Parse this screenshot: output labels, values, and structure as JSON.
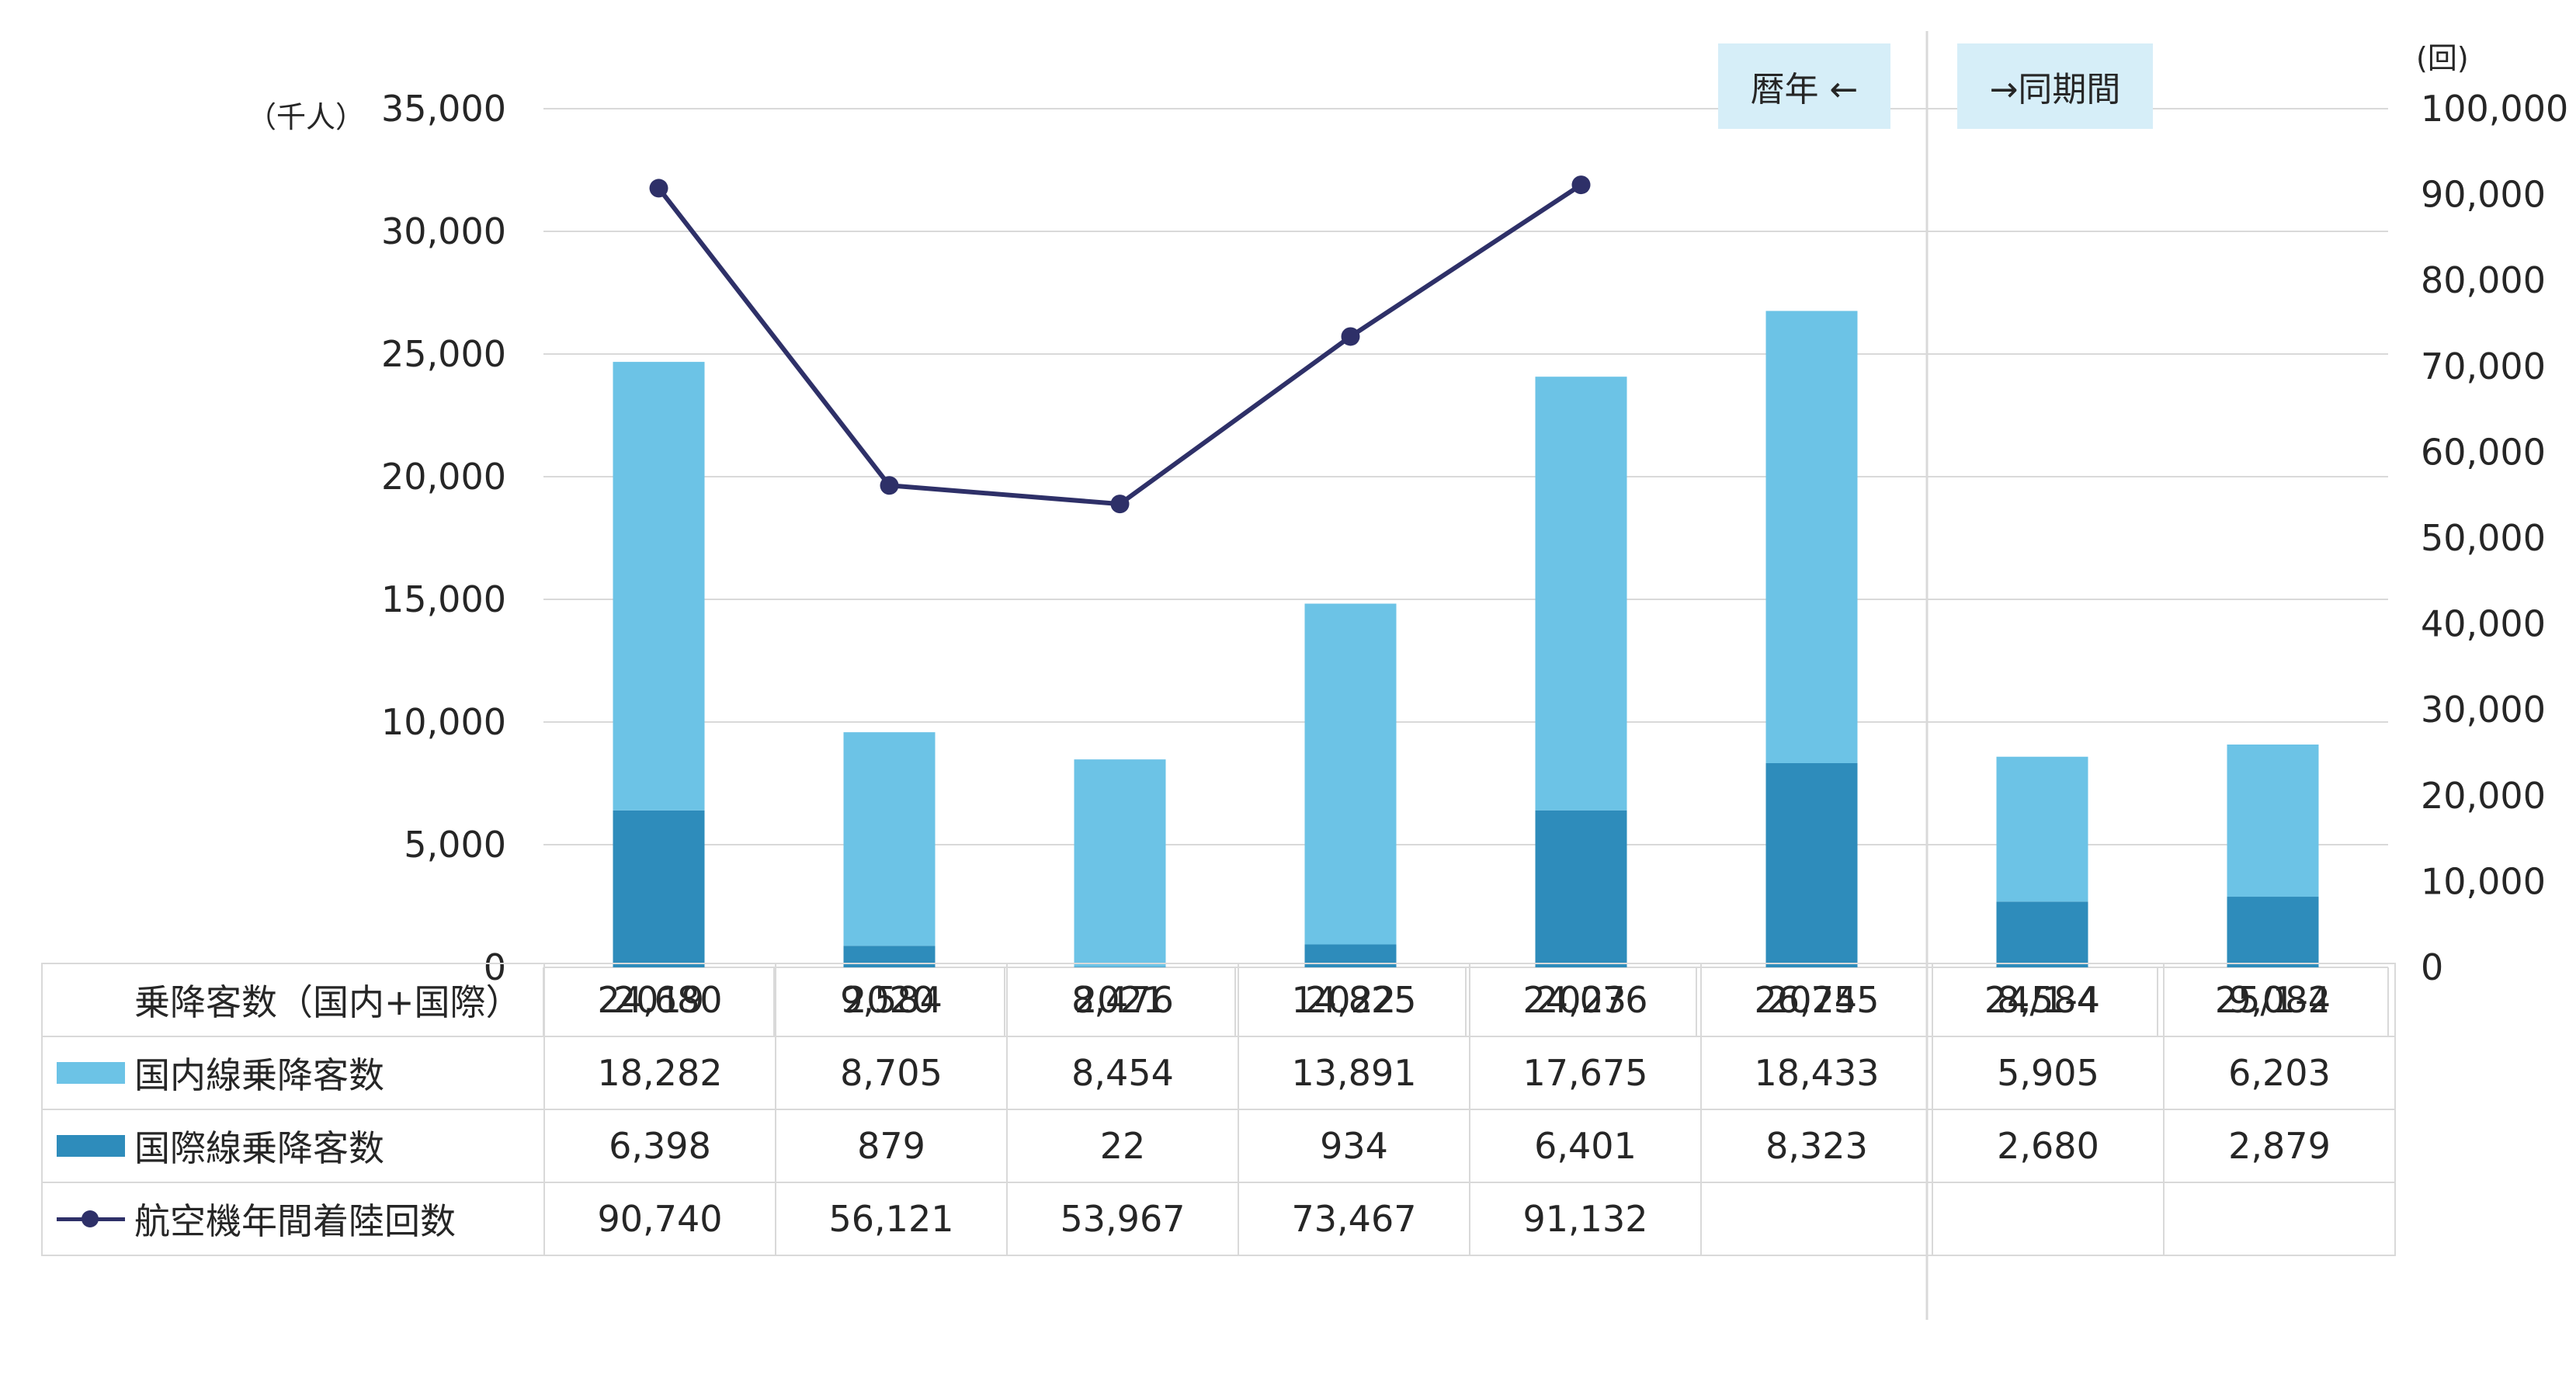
{
  "units": {
    "left": "（千人）",
    "right": "(回)"
  },
  "tags": {
    "calendar": "暦年 ←",
    "same_period": "→同期間"
  },
  "colors": {
    "domestic": "#6cc3e6",
    "international": "#2e8cbb",
    "landings": "#2e3068",
    "grid": "#d9d9d9"
  },
  "chart_data": {
    "type": "bar",
    "stacked": true,
    "categories": [
      "2019",
      "2020",
      "2021",
      "2022",
      "2023",
      "2024",
      "24/1-4",
      "25/1-4"
    ],
    "series": [
      {
        "name": "国際線乗降客数",
        "axis": "left",
        "values": [
          6398,
          879,
          22,
          934,
          6401,
          8323,
          2680,
          2879
        ]
      },
      {
        "name": "国内線乗降客数",
        "axis": "left",
        "values": [
          18282,
          8705,
          8454,
          13891,
          17675,
          18433,
          5905,
          6203
        ]
      },
      {
        "name": "航空機年間着陸回数",
        "type": "line",
        "axis": "right",
        "values": [
          90740,
          56121,
          53967,
          73467,
          91132,
          null,
          null,
          null
        ]
      }
    ],
    "totals": [
      24680,
      9584,
      8476,
      14825,
      24076,
      26755,
      8584,
      9082
    ],
    "ylim_left": [
      0,
      35000
    ],
    "yticks_left": [
      "0",
      "5,000",
      "10,000",
      "15,000",
      "20,000",
      "25,000",
      "30,000",
      "35,000"
    ],
    "ylim_right": [
      0,
      100000
    ],
    "yticks_right": [
      "0",
      "10,000",
      "20,000",
      "30,000",
      "40,000",
      "50,000",
      "60,000",
      "70,000",
      "80,000",
      "90,000",
      "100,000"
    ],
    "grid": true
  },
  "table": {
    "rows": [
      {
        "label": "乗降客数（国内+国際）",
        "key": "none",
        "values": [
          "24,680",
          "9,584",
          "8,476",
          "14,825",
          "24,076",
          "26,755",
          "8,584",
          "9,082"
        ]
      },
      {
        "label": "国内線乗降客数",
        "key": "domestic",
        "values": [
          "18,282",
          "8,705",
          "8,454",
          "13,891",
          "17,675",
          "18,433",
          "5,905",
          "6,203"
        ]
      },
      {
        "label": "国際線乗降客数",
        "key": "international",
        "values": [
          "6,398",
          "879",
          "22",
          "934",
          "6,401",
          "8,323",
          "2,680",
          "2,879"
        ]
      },
      {
        "label": "航空機年間着陸回数",
        "key": "line",
        "values": [
          "90,740",
          "56,121",
          "53,967",
          "73,467",
          "91,132",
          "",
          "",
          ""
        ]
      }
    ]
  }
}
